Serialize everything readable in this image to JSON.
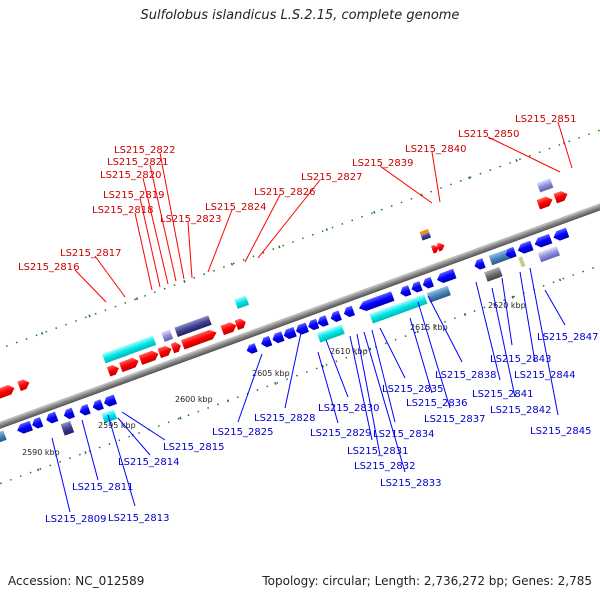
{
  "title": "Sulfolobus islandicus L.S.2.15, complete genome",
  "footer": {
    "accession": "Accession: NC_012589",
    "topology": "Topology: circular; Length: 2,736,272 bp; Genes: 2,785"
  },
  "colors": {
    "forward": "#ff0000",
    "reverse": "#0000ff",
    "rna": "#00e5e5",
    "backbone": "#888888",
    "ticks": "#1f7a1f",
    "forward_label": "#cc0000",
    "reverse_label": "#0000cc"
  },
  "ruler": [
    {
      "label": "2590 kbp"
    },
    {
      "label": "2595 kbp"
    },
    {
      "label": "2600 kbp"
    },
    {
      "label": "2605 kbp"
    },
    {
      "label": "2610 kbp"
    },
    {
      "label": "2615 kbp"
    },
    {
      "label": "2620 kbp"
    }
  ],
  "forward_labels": [
    "LS215_2816",
    "LS215_2817",
    "LS215_2818",
    "LS215_2819",
    "LS215_2820",
    "LS215_2821",
    "LS215_2822",
    "LS215_2823",
    "LS215_2824",
    "LS215_2826",
    "LS215_2827",
    "LS215_2839",
    "LS215_2840",
    "LS215_2850",
    "LS215_2851"
  ],
  "reverse_labels": [
    "LS215_2809",
    "LS215_2811",
    "LS215_2813",
    "LS215_2814",
    "LS215_2815",
    "LS215_2825",
    "LS215_2828",
    "LS215_2829",
    "LS215_2830",
    "LS215_2831",
    "LS215_2832",
    "LS215_2833",
    "LS215_2834",
    "LS215_2835",
    "LS215_2836",
    "LS215_2837",
    "LS215_2838",
    "LS215_2841",
    "LS215_2842",
    "LS215_2843",
    "LS215_2844",
    "LS215_2845",
    "LS215_2847"
  ]
}
